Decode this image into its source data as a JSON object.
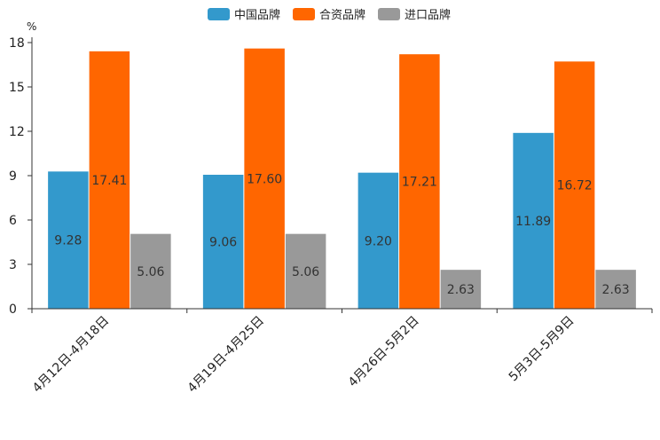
{
  "chart_data": {
    "type": "bar",
    "unit": "%",
    "ylim": [
      0,
      18
    ],
    "yticks": [
      "0",
      "3",
      "6",
      "9",
      "12",
      "15",
      "18"
    ],
    "categories": [
      "4月12日-4月18日",
      "4月19日-4月25日",
      "4月26日-5月2日",
      "5月3日-5月9日"
    ],
    "series": [
      {
        "name": "中国品牌",
        "color": "#3399cc",
        "values": [
          9.28,
          9.06,
          9.2,
          11.89
        ],
        "labels": [
          "9.28",
          "9.06",
          "9.20",
          "11.89"
        ]
      },
      {
        "name": "合资品牌",
        "color": "#ff6600",
        "values": [
          17.41,
          17.6,
          17.21,
          16.72
        ],
        "labels": [
          "17.41",
          "17.60",
          "17.21",
          "16.72"
        ]
      },
      {
        "name": "进口品牌",
        "color": "#999999",
        "values": [
          5.06,
          5.06,
          2.63,
          2.63
        ],
        "labels": [
          "5.06",
          "5.06",
          "2.63",
          "2.63"
        ]
      }
    ],
    "legend_position": "top-center"
  }
}
